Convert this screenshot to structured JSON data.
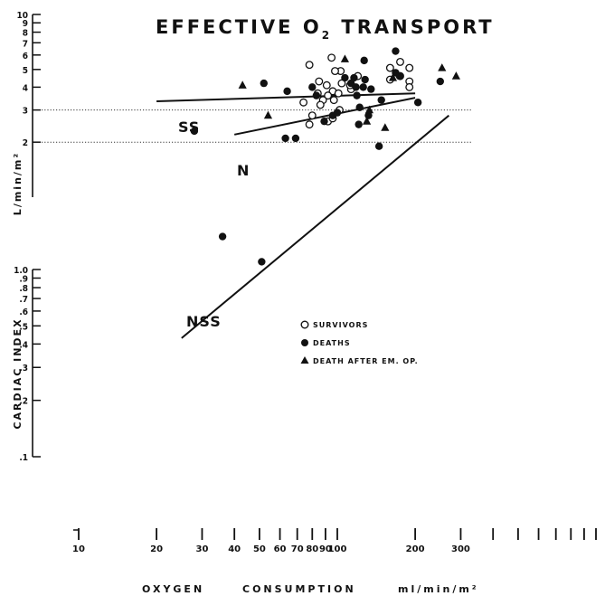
{
  "chart_data": {
    "type": "scatter",
    "title": "EFFECTIVE O",
    "title_subscript": "2",
    "title_rest": " TRANSPORT",
    "xlabel_parts": [
      "OXYGEN",
      "CONSUMPTION",
      "ml/min/m²"
    ],
    "ylabel_top": "L/min/m²",
    "ylabel_bottom": "CARDIAC INDEX",
    "x_scale": "log",
    "y_scale": "log (two cycles offset)",
    "xlim": [
      10,
      1000
    ],
    "y_ticks_upper": [
      "2",
      "3",
      "4",
      "5",
      "6",
      "7",
      "8",
      "9",
      "10"
    ],
    "y_ticks_lower": [
      ".1",
      ".2",
      ".3",
      ".4",
      ".5",
      ".6",
      ".7",
      ".8",
      ".9",
      "1.0"
    ],
    "x_tick_labels": [
      {
        "value": 10,
        "label": "10"
      },
      {
        "value": 20,
        "label": "20"
      },
      {
        "value": 30,
        "label": "30"
      },
      {
        "value": 40,
        "label": "40"
      },
      {
        "value": 50,
        "label": "50"
      },
      {
        "value": 60,
        "label": "60"
      },
      {
        "value": 70,
        "label": "70"
      },
      {
        "value": 80,
        "label": "80"
      },
      {
        "value": 90,
        "label": "90"
      },
      {
        "value": 100,
        "label": "100"
      },
      {
        "value": 200,
        "label": "200"
      },
      {
        "value": 300,
        "label": "300"
      }
    ],
    "x_unlabeled_ticks": [
      400,
      500,
      600,
      700,
      800,
      900,
      1000
    ],
    "reference_lines_y": [
      3,
      2
    ],
    "grid": false,
    "legend_position": "center-right",
    "series": [
      {
        "name": "SURVIVORS",
        "marker": "open-circle",
        "points": [
          [
            95,
            5.8
          ],
          [
            78,
            5.3
          ],
          [
            103,
            4.9
          ],
          [
            98,
            4.9
          ],
          [
            120,
            4.6
          ],
          [
            85,
            4.3
          ],
          [
            104,
            4.2
          ],
          [
            91,
            4.1
          ],
          [
            96,
            3.8
          ],
          [
            113,
            3.9
          ],
          [
            84,
            3.7
          ],
          [
            92,
            3.6
          ],
          [
            101,
            3.7
          ],
          [
            88,
            3.4
          ],
          [
            97,
            3.4
          ],
          [
            86,
            3.2
          ],
          [
            74,
            3.3
          ],
          [
            80,
            2.8
          ],
          [
            92,
            2.6
          ],
          [
            78,
            2.5
          ],
          [
            102,
            3.0
          ],
          [
            96,
            2.7
          ],
          [
            160,
            5.1
          ],
          [
            175,
            5.5
          ],
          [
            190,
            5.1
          ],
          [
            175,
            4.6
          ],
          [
            160,
            4.4
          ],
          [
            190,
            4.3
          ],
          [
            190,
            4.0
          ],
          [
            112,
            4.1
          ]
        ]
      },
      {
        "name": "DEATHS",
        "marker": "filled-circle",
        "points": [
          [
            28,
            2.3
          ],
          [
            36,
            1.5
          ],
          [
            51,
            1.1
          ],
          [
            52,
            4.2
          ],
          [
            64,
            3.8
          ],
          [
            63,
            2.1
          ],
          [
            69,
            2.1
          ],
          [
            80,
            4.0
          ],
          [
            83,
            3.6
          ],
          [
            89,
            2.6
          ],
          [
            96,
            2.8
          ],
          [
            100,
            2.9
          ],
          [
            107,
            4.5
          ],
          [
            113,
            4.2
          ],
          [
            116,
            4.5
          ],
          [
            118,
            4.0
          ],
          [
            119,
            3.6
          ],
          [
            122,
            3.1
          ],
          [
            127,
            5.6
          ],
          [
            128,
            4.4
          ],
          [
            121,
            2.5
          ],
          [
            126,
            4.0
          ],
          [
            132,
            2.8
          ],
          [
            135,
            3.9
          ],
          [
            145,
            1.9
          ],
          [
            148,
            3.4
          ],
          [
            168,
            6.3
          ],
          [
            168,
            4.8
          ],
          [
            174,
            4.6
          ],
          [
            205,
            3.3
          ],
          [
            250,
            4.3
          ]
        ]
      },
      {
        "name": "DEATH AFTER EM. OP.",
        "marker": "filled-triangle",
        "points": [
          [
            43,
            4.1
          ],
          [
            54,
            2.8
          ],
          [
            107,
            5.7
          ],
          [
            130,
            2.6
          ],
          [
            133,
            3.0
          ],
          [
            153,
            2.4
          ],
          [
            164,
            4.5
          ],
          [
            254,
            5.1
          ],
          [
            288,
            4.6
          ]
        ]
      }
    ],
    "lines": [
      {
        "label": "SS",
        "from": [
          20,
          3.35
        ],
        "to": [
          200,
          3.7
        ]
      },
      {
        "label": "N",
        "from": [
          40,
          2.2
        ],
        "to": [
          200,
          3.5
        ]
      },
      {
        "label": "NSS",
        "from": [
          25,
          0.43
        ],
        "to": [
          270,
          2.8
        ]
      }
    ]
  }
}
